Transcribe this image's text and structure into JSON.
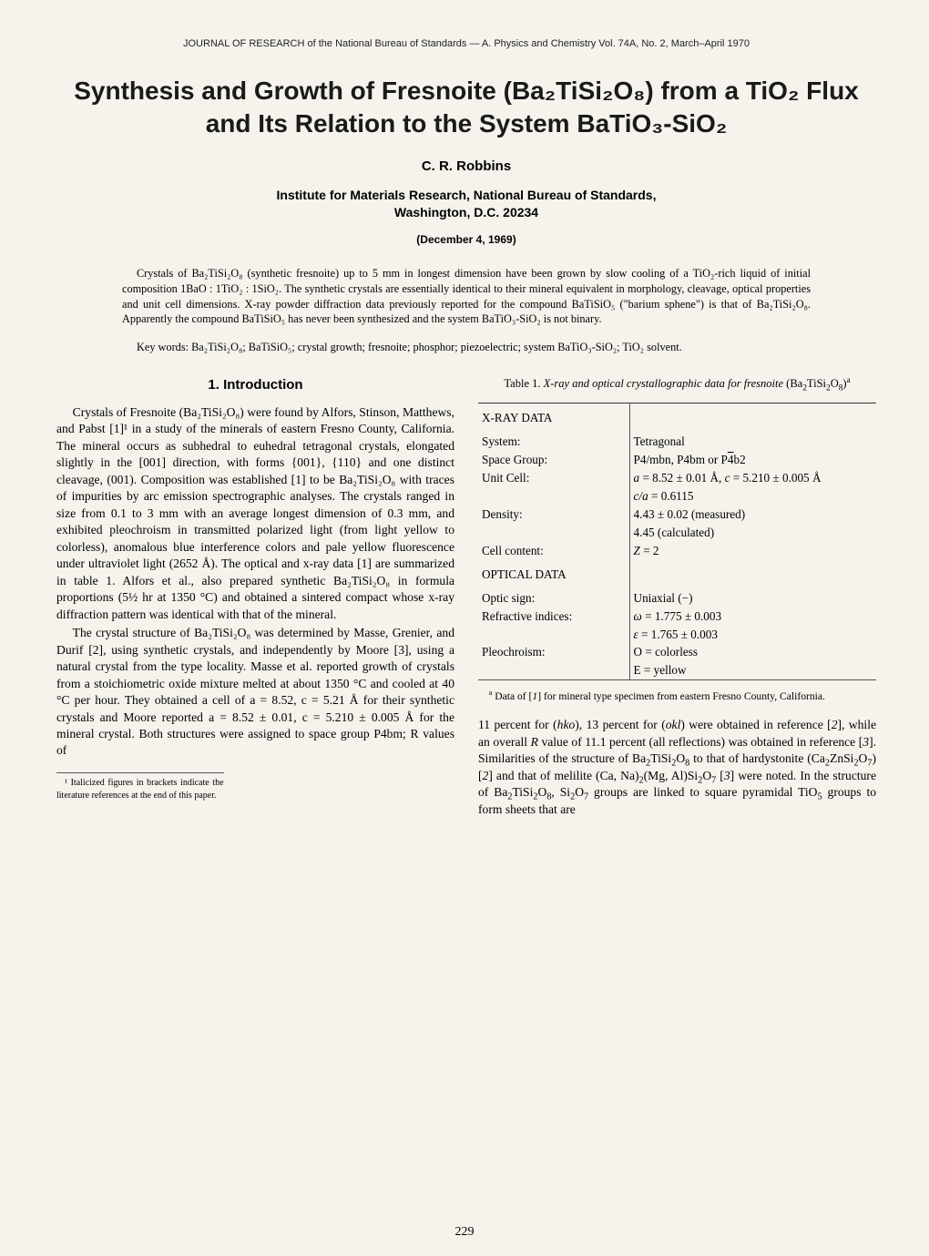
{
  "journalHeader": "JOURNAL OF RESEARCH of the National Bureau of Standards — A. Physics and Chemistry Vol. 74A, No. 2, March–April 1970",
  "title": "Synthesis and Growth of Fresnoite (Ba₂TiSi₂O₈) from a TiO₂ Flux and Its Relation to the System BaTiO₃-SiO₂",
  "author": "C. R. Robbins",
  "affiliation1": "Institute for Materials Research, National Bureau of Standards,",
  "affiliation2": "Washington, D.C. 20234",
  "date": "(December 4, 1969)",
  "abstract": "Crystals of Ba₂TiSi₂O₈ (synthetic fresnoite) up to 5 mm in longest dimension have been grown by slow cooling of a TiO₂-rich liquid of initial composition 1BaO : 1TiO₂ : 1SiO₂. The synthetic crystals are essentially identical to their mineral equivalent in morphology, cleavage, optical properties and unit cell dimensions. X-ray powder diffraction data previously reported for the compound BaTiSiO₅ (\"barium sphene\") is that of Ba₂TiSi₂O₈. Apparently the compound BaTiSiO₅ has never been synthesized and the system BaTiO₃-SiO₂ is not binary.",
  "keywords": "Key words: Ba₂TiSi₂O₈; BaTiSiO₅; crystal growth; fresnoite; phosphor; piezoelectric; system BaTiO₃-SiO₂; TiO₂ solvent.",
  "section1Heading": "1. Introduction",
  "col1p1": "Crystals of Fresnoite (Ba₂TiSi₂O₈) were found by Alfors, Stinson, Matthews, and Pabst [1]¹ in a study of the minerals of eastern Fresno County, California. The mineral occurs as subhedral to euhedral tetragonal crystals, elongated slightly in the [001] direction, with forms {001}, {110} and one distinct cleavage, (001). Composition was established [1] to be Ba₂TiSi₂O₈ with traces of impurities by arc emission spectrographic analyses. The crystals ranged in size from 0.1 to 3 mm with an average longest dimension of 0.3 mm, and exhibited pleochroism in transmitted polarized light (from light yellow to colorless), anomalous blue interference colors and pale yellow fluorescence under ultraviolet light (2652 Å). The optical and x-ray data [1] are summarized in table 1. Alfors et al., also prepared synthetic Ba₂TiSi₂O₈ in formula proportions (5½ hr at 1350 °C) and obtained a sintered compact whose x-ray diffraction pattern was identical with that of the mineral.",
  "col1p2": "The crystal structure of Ba₂TiSi₂O₈ was determined by Masse, Grenier, and Durif [2], using synthetic crystals, and independently by Moore [3], using a natural crystal from the type locality. Masse et al. reported growth of crystals from a stoichiometric oxide mixture melted at about 1350 °C and cooled at 40 °C per hour. They obtained a cell of a = 8.52, c = 5.21 Å for their synthetic crystals and Moore reported a = 8.52 ± 0.01, c = 5.210 ± 0.005 Å for the mineral crystal. Both structures were assigned to space group P4bm; R values of",
  "table1Caption": "Table 1. X-ray and optical crystallographic data for fresnoite (Ba₂TiSi₂O₈) ᵃ",
  "tableFootnote": "ᵃ Data of [1] for mineral type specimen from eastern Fresno County, California.",
  "col2p1": "11 percent for (hko), 13 percent for (okl) were obtained in reference [2], while an overall R value of 11.1 percent (all reflections) was obtained in reference [3]. Similarities of the structure of Ba₂TiSi₂O₈ to that of hardystonite (Ca₂ZnSi₂O₇) [2] and that of melilite (Ca, Na)₂(Mg, Al)Si₂O₇ [3] were noted. In the structure of Ba₂TiSi₂O₈, Si₂O₇ groups are linked to square pyramidal TiO₅ groups to form sheets that are",
  "pageFootnote": "¹ Italicized figures in brackets indicate the literature references at the end of this paper.",
  "pageNumber": "229",
  "tableHeaders": {
    "xray": "X-RAY DATA",
    "optical": "OPTICAL DATA"
  },
  "tableRows": {
    "systemL": "System:",
    "systemV": "Tetragonal",
    "spaceGroupL": "Space Group:",
    "spaceGroupV": "P4/mbn, P4bm or P4̄b2",
    "unitCellL": "Unit Cell:",
    "unitCellV1": "a = 8.52 ± 0.01 Å, c = 5.210 ± 0.005 Å",
    "unitCellV2": "c/a = 0.6115",
    "densityL": "Density:",
    "densityV1": "4.43 ± 0.02 (measured)",
    "densityV2": "4.45 (calculated)",
    "cellContentL": "Cell content:",
    "cellContentV": "Z = 2",
    "opticSignL": "Optic sign:",
    "opticSignV": "Uniaxial (−)",
    "refracL": "Refractive indices:",
    "refracV1": "ω = 1.775 ± 0.003",
    "refracV2": "ε = 1.765 ± 0.003",
    "pleoL": "Pleochroism:",
    "pleoV1": "O = colorless",
    "pleoV2": "E = yellow"
  }
}
